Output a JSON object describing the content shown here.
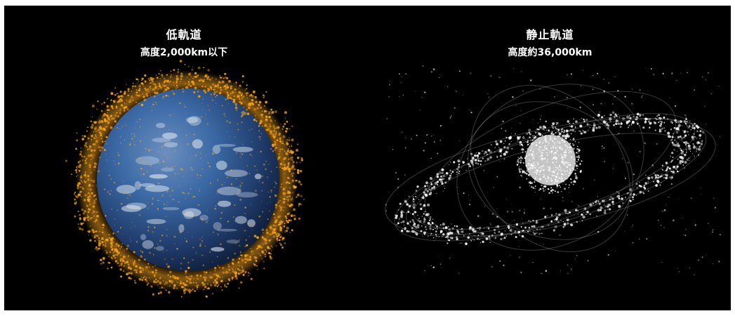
{
  "panels": {
    "low_orbit": {
      "title": "低軌道",
      "subtitle": "高度2,000km以下"
    },
    "geo_orbit": {
      "title": "静止軌道",
      "subtitle": "高度約36,000km"
    }
  },
  "colors": {
    "background": "#000000",
    "frame_border": "#ffffff",
    "low_orbit_debris": "#f5a21b",
    "geo_orbit_debris": "#ffffff",
    "earth_ocean": "#2a4f86"
  }
}
